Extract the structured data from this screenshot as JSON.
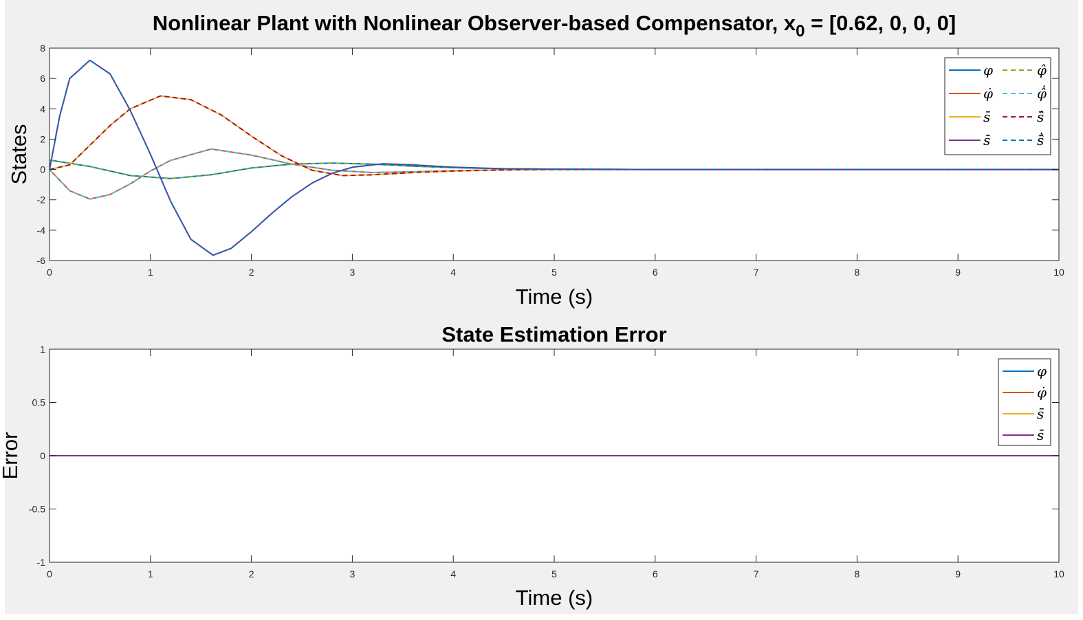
{
  "figure": {
    "background_color": "#f0f0f0",
    "axes_color": "#ffffff",
    "tick_color": "#262626"
  },
  "chart_data": [
    {
      "type": "line",
      "title": "Nonlinear Plant with Nonlinear Observer-based Compensator, x",
      "title_subscript": "0",
      "title_suffix": " = [0.62, 0, 0, 0]",
      "xlabel": "Time (s)",
      "ylabel": "States",
      "xlim": [
        0,
        10
      ],
      "ylim": [
        -6,
        8
      ],
      "xticks": [
        "0",
        "1",
        "2",
        "3",
        "4",
        "5",
        "6",
        "7",
        "8",
        "9",
        "10"
      ],
      "yticks": [
        "-6",
        "-4",
        "-2",
        "0",
        "2",
        "4",
        "6",
        "8"
      ],
      "grid": false,
      "legend_position": "top-right",
      "series": [
        {
          "name": "φ",
          "color": "#0072bd",
          "dash": false,
          "x": [
            0,
            0.4,
            0.8,
            1.2,
            1.6,
            2.0,
            2.4,
            2.8,
            3.2,
            3.6,
            4.0,
            4.5,
            5,
            6,
            7,
            8,
            9,
            10
          ],
          "y": [
            0.62,
            0.2,
            -0.4,
            -0.6,
            -0.35,
            0.1,
            0.35,
            0.42,
            0.35,
            0.22,
            0.12,
            0.05,
            0.02,
            0,
            0,
            0,
            0,
            0
          ]
        },
        {
          "name": "φ̂",
          "color": "#77ac30",
          "dash": true,
          "x": [
            0,
            0.4,
            0.8,
            1.2,
            1.6,
            2.0,
            2.4,
            2.8,
            3.2,
            3.6,
            4.0,
            4.5,
            5,
            6,
            7,
            8,
            9,
            10
          ],
          "y": [
            0.62,
            0.2,
            -0.4,
            -0.6,
            -0.35,
            0.1,
            0.35,
            0.42,
            0.35,
            0.22,
            0.12,
            0.05,
            0.02,
            0,
            0,
            0,
            0,
            0
          ]
        },
        {
          "name": "φ̇",
          "color": "#d95319",
          "dash": false,
          "x": [
            0,
            0.2,
            0.4,
            0.6,
            0.8,
            1.0,
            1.2,
            1.6,
            2.0,
            2.4,
            2.8,
            3.2,
            3.6,
            4.0,
            4.5,
            5,
            6,
            7,
            8,
            9,
            10
          ],
          "y": [
            0,
            -1.4,
            -1.95,
            -1.65,
            -0.95,
            -0.1,
            0.6,
            1.35,
            0.95,
            0.35,
            -0.05,
            -0.2,
            -0.15,
            -0.08,
            -0.03,
            0,
            0,
            0,
            0,
            0,
            0
          ]
        },
        {
          "name": "φ̂̇",
          "color": "#4dbeee",
          "dash": true,
          "x": [
            0,
            0.2,
            0.4,
            0.6,
            0.8,
            1.0,
            1.2,
            1.6,
            2.0,
            2.4,
            2.8,
            3.2,
            3.6,
            4.0,
            4.5,
            5,
            6,
            7,
            8,
            9,
            10
          ],
          "y": [
            0,
            -1.4,
            -1.95,
            -1.65,
            -0.95,
            -0.1,
            0.6,
            1.35,
            0.95,
            0.35,
            -0.05,
            -0.2,
            -0.15,
            -0.08,
            -0.03,
            0,
            0,
            0,
            0,
            0,
            0
          ]
        },
        {
          "name": "s̄",
          "color": "#edb120",
          "dash": false,
          "x": [
            0,
            0.2,
            0.4,
            0.6,
            0.8,
            1.1,
            1.4,
            1.7,
            2.0,
            2.3,
            2.6,
            2.9,
            3.2,
            3.6,
            4.0,
            4.5,
            5,
            6,
            7,
            8,
            9,
            10
          ],
          "y": [
            0,
            0.3,
            1.6,
            2.9,
            4.0,
            4.85,
            4.6,
            3.6,
            2.2,
            0.9,
            -0.05,
            -0.4,
            -0.35,
            -0.2,
            -0.1,
            -0.03,
            0,
            0,
            0,
            0,
            0,
            0
          ]
        },
        {
          "name": "ŝ̄",
          "color": "#a2142f",
          "dash": true,
          "x": [
            0,
            0.2,
            0.4,
            0.6,
            0.8,
            1.1,
            1.4,
            1.7,
            2.0,
            2.3,
            2.6,
            2.9,
            3.2,
            3.6,
            4.0,
            4.5,
            5,
            6,
            7,
            8,
            9,
            10
          ],
          "y": [
            0,
            0.3,
            1.6,
            2.9,
            4.0,
            4.85,
            4.6,
            3.6,
            2.2,
            0.9,
            -0.05,
            -0.4,
            -0.35,
            -0.2,
            -0.1,
            -0.03,
            0,
            0,
            0,
            0,
            0,
            0
          ]
        },
        {
          "name": "s̄̇",
          "color": "#7e2f8e",
          "dash": false,
          "x": [
            0,
            0.1,
            0.2,
            0.4,
            0.6,
            0.8,
            1.0,
            1.2,
            1.4,
            1.62,
            1.8,
            2.0,
            2.2,
            2.4,
            2.6,
            2.8,
            3.0,
            3.3,
            3.6,
            4.0,
            4.5,
            5,
            6,
            7,
            8,
            9,
            10
          ],
          "y": [
            0,
            3.5,
            6.0,
            7.2,
            6.3,
            3.9,
            1.0,
            -2.1,
            -4.6,
            -5.65,
            -5.2,
            -4.1,
            -2.9,
            -1.8,
            -0.9,
            -0.25,
            0.15,
            0.38,
            0.3,
            0.15,
            0.05,
            0.02,
            0,
            0,
            0,
            0,
            0
          ]
        },
        {
          "name": "ŝ̄̇",
          "color": "#0072bd",
          "dash": true,
          "x": [
            0,
            0.1,
            0.2,
            0.4,
            0.6,
            0.8,
            1.0,
            1.2,
            1.4,
            1.62,
            1.8,
            2.0,
            2.2,
            2.4,
            2.6,
            2.8,
            3.0,
            3.3,
            3.6,
            4.0,
            4.5,
            5,
            6,
            7,
            8,
            9,
            10
          ],
          "y": [
            0,
            3.5,
            6.0,
            7.2,
            6.3,
            3.9,
            1.0,
            -2.1,
            -4.6,
            -5.65,
            -5.2,
            -4.1,
            -2.9,
            -1.8,
            -0.9,
            -0.25,
            0.15,
            0.38,
            0.3,
            0.15,
            0.05,
            0.02,
            0,
            0,
            0,
            0,
            0
          ]
        }
      ]
    },
    {
      "type": "line",
      "title": "State Estimation Error",
      "xlabel": "Time (s)",
      "ylabel": "Error",
      "xlim": [
        0,
        10
      ],
      "ylim": [
        -1,
        1
      ],
      "xticks": [
        "0",
        "1",
        "2",
        "3",
        "4",
        "5",
        "6",
        "7",
        "8",
        "9",
        "10"
      ],
      "yticks": [
        "-1",
        "-0.5",
        "0",
        "0.5",
        "1"
      ],
      "grid": false,
      "legend_position": "top-right",
      "series": [
        {
          "name": "φ",
          "color": "#0072bd",
          "x": [
            0,
            10
          ],
          "y": [
            0,
            0
          ]
        },
        {
          "name": "φ̇",
          "color": "#d95319",
          "x": [
            0,
            10
          ],
          "y": [
            0,
            0
          ]
        },
        {
          "name": "s̄",
          "color": "#edb120",
          "x": [
            0,
            10
          ],
          "y": [
            0,
            0
          ]
        },
        {
          "name": "s̄̇",
          "color": "#7e2f8e",
          "x": [
            0,
            10
          ],
          "y": [
            0,
            0
          ]
        }
      ]
    }
  ]
}
